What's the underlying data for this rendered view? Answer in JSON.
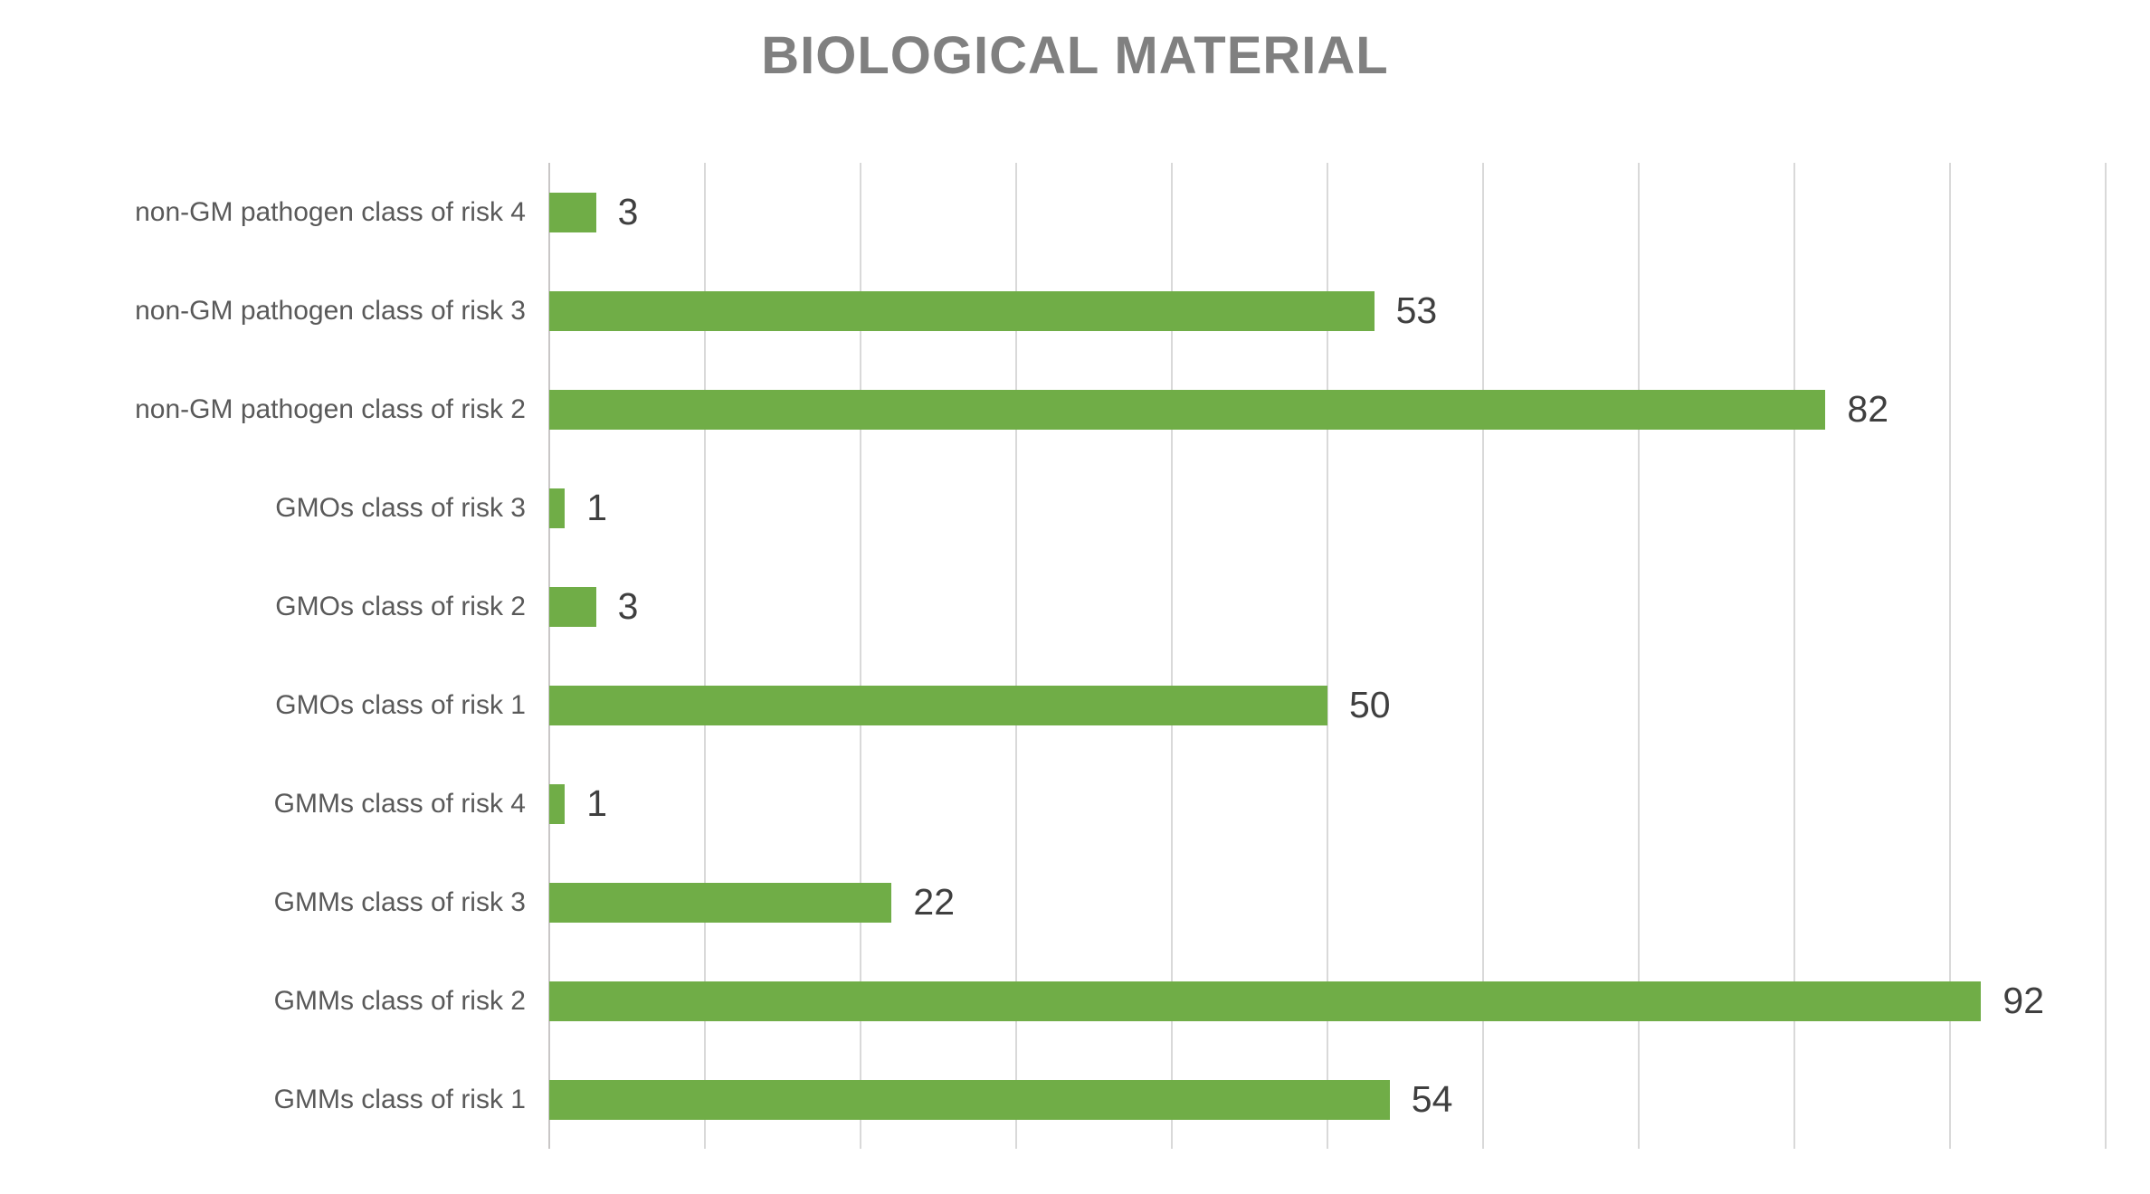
{
  "title": "BIOLOGICAL MATERIAL",
  "chart_data": {
    "type": "bar",
    "orientation": "horizontal",
    "title": "BIOLOGICAL MATERIAL",
    "categories": [
      "non-GM pathogen class of risk 4",
      "non-GM pathogen class of risk 3",
      "non-GM pathogen class of risk 2",
      "GMOs class of risk 3",
      "GMOs class of risk 2",
      "GMOs class of risk 1",
      "GMMs class of risk 4",
      "GMMs class of risk 3",
      "GMMs class of risk 2",
      "GMMs class of risk 1"
    ],
    "values": [
      3,
      53,
      82,
      1,
      3,
      50,
      1,
      22,
      92,
      54
    ],
    "xlabel": "",
    "ylabel": "",
    "xlim": [
      0,
      100
    ],
    "gridline_step": 10,
    "grid": true,
    "legend_position": "none",
    "data_labels_shown": true,
    "colors": {
      "bar": "#70AD47",
      "gridline": "#D9D9D9",
      "axis_line": "#C9C7C7",
      "title_text": "#808080",
      "category_text": "#595959",
      "value_text": "#3F3F3F",
      "background": "#FFFFFF"
    }
  }
}
